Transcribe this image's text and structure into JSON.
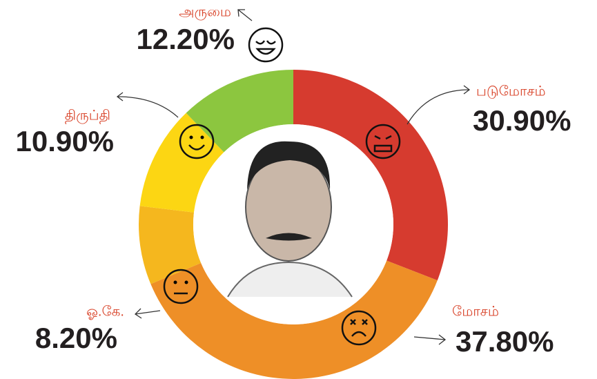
{
  "chart_data": {
    "type": "pie",
    "categories": [
      "படுமோசம்",
      "மோசம்",
      "ஓ.கே.",
      "திருப்தி",
      "அருமை"
    ],
    "values": [
      30.9,
      37.8,
      8.2,
      10.9,
      12.2
    ],
    "value_labels": [
      "30.90%",
      "37.80%",
      "8.20%",
      "10.90%",
      "12.20%"
    ],
    "colors": [
      "#d63b2f",
      "#ee8f27",
      "#f5b71e",
      "#fcd613",
      "#8cc63f"
    ]
  }
}
